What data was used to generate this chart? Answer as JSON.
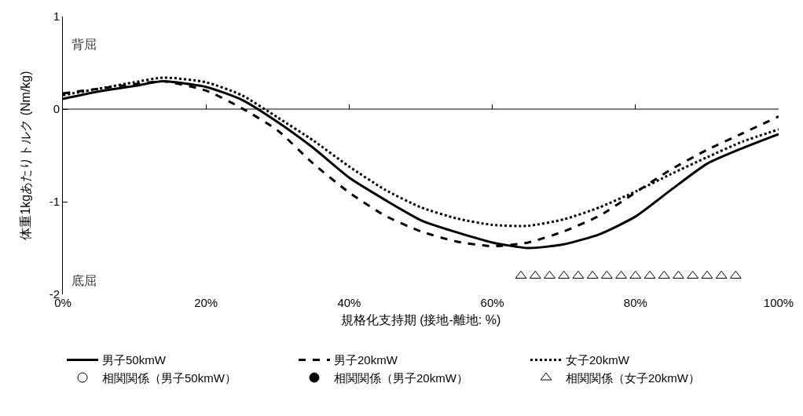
{
  "chart_data": {
    "type": "line",
    "xlabel": "規格化支持期 (接地-離地: %)",
    "ylabel": "体重1kgあたりトルク (Nm/kg)",
    "x": [
      0,
      5,
      10,
      14,
      20,
      25,
      30,
      35,
      40,
      45,
      50,
      55,
      60,
      65,
      70,
      75,
      80,
      85,
      90,
      95,
      100
    ],
    "xlim": [
      0,
      100
    ],
    "xticks": [
      {
        "value": 0,
        "label": "0%"
      },
      {
        "value": 20,
        "label": "20%"
      },
      {
        "value": 40,
        "label": "40%"
      },
      {
        "value": 60,
        "label": "60%"
      },
      {
        "value": 80,
        "label": "80%"
      },
      {
        "value": 100,
        "label": "100%"
      }
    ],
    "ylim": [
      -2,
      1
    ],
    "yticks": [
      -2,
      -1,
      0,
      1
    ],
    "grid": false,
    "legend": "bottom",
    "marker": "none",
    "series": [
      {
        "name": "男子50kmW",
        "color": "#000000",
        "line_style": "solid",
        "values": [
          0.11,
          0.19,
          0.25,
          0.3,
          0.24,
          0.1,
          -0.14,
          -0.42,
          -0.74,
          -0.98,
          -1.2,
          -1.33,
          -1.44,
          -1.5,
          -1.46,
          -1.35,
          -1.16,
          -0.87,
          -0.59,
          -0.42,
          -0.27
        ]
      },
      {
        "name": "男子20kmW",
        "color": "#000000",
        "line_style": "dashed",
        "values": [
          0.17,
          0.22,
          0.27,
          0.3,
          0.2,
          0.01,
          -0.23,
          -0.59,
          -0.9,
          -1.15,
          -1.32,
          -1.43,
          -1.48,
          -1.44,
          -1.32,
          -1.15,
          -0.9,
          -0.65,
          -0.44,
          -0.26,
          -0.08
        ]
      },
      {
        "name": "女子20kmW",
        "color": "#000000",
        "line_style": "dotted",
        "values": [
          0.15,
          0.22,
          0.29,
          0.34,
          0.29,
          0.15,
          -0.09,
          -0.34,
          -0.62,
          -0.87,
          -1.06,
          -1.18,
          -1.25,
          -1.26,
          -1.19,
          -1.06,
          -0.89,
          -0.7,
          -0.52,
          -0.35,
          -0.22
        ]
      },
      {
        "name": "相関関係（男子50kmW）",
        "type": "scatter",
        "marker": "circle",
        "color": "#ffffff",
        "values": [
          null,
          null,
          null,
          null,
          null,
          null,
          null,
          null,
          null,
          null,
          null,
          null,
          null,
          null,
          null,
          null,
          null,
          null,
          null,
          null,
          null
        ]
      },
      {
        "name": "相関関係（男子20kmW）",
        "type": "scatter",
        "marker": "circle",
        "color": "#000000",
        "values": [
          null,
          null,
          null,
          null,
          null,
          null,
          null,
          null,
          null,
          null,
          null,
          null,
          null,
          null,
          null,
          null,
          null,
          null,
          null,
          null,
          null
        ]
      },
      {
        "name": "相関関係（女子20kmW）",
        "type": "scatter",
        "marker": "triangle",
        "color": "#ffffff",
        "x": [
          64,
          66,
          68,
          70,
          72,
          74,
          76,
          78,
          80,
          82,
          84,
          86,
          88,
          90,
          92,
          94
        ],
        "values": [
          -1.8,
          -1.8,
          -1.8,
          -1.8,
          -1.8,
          -1.8,
          -1.8,
          -1.8,
          -1.8,
          -1.8,
          -1.8,
          -1.8,
          -1.8,
          -1.8,
          -1.8,
          -1.8
        ]
      }
    ],
    "ref_lines": [
      {
        "axis": "y",
        "value": 0,
        "color": "#000000"
      }
    ],
    "annotations": [
      "背屈",
      "底屈"
    ]
  }
}
